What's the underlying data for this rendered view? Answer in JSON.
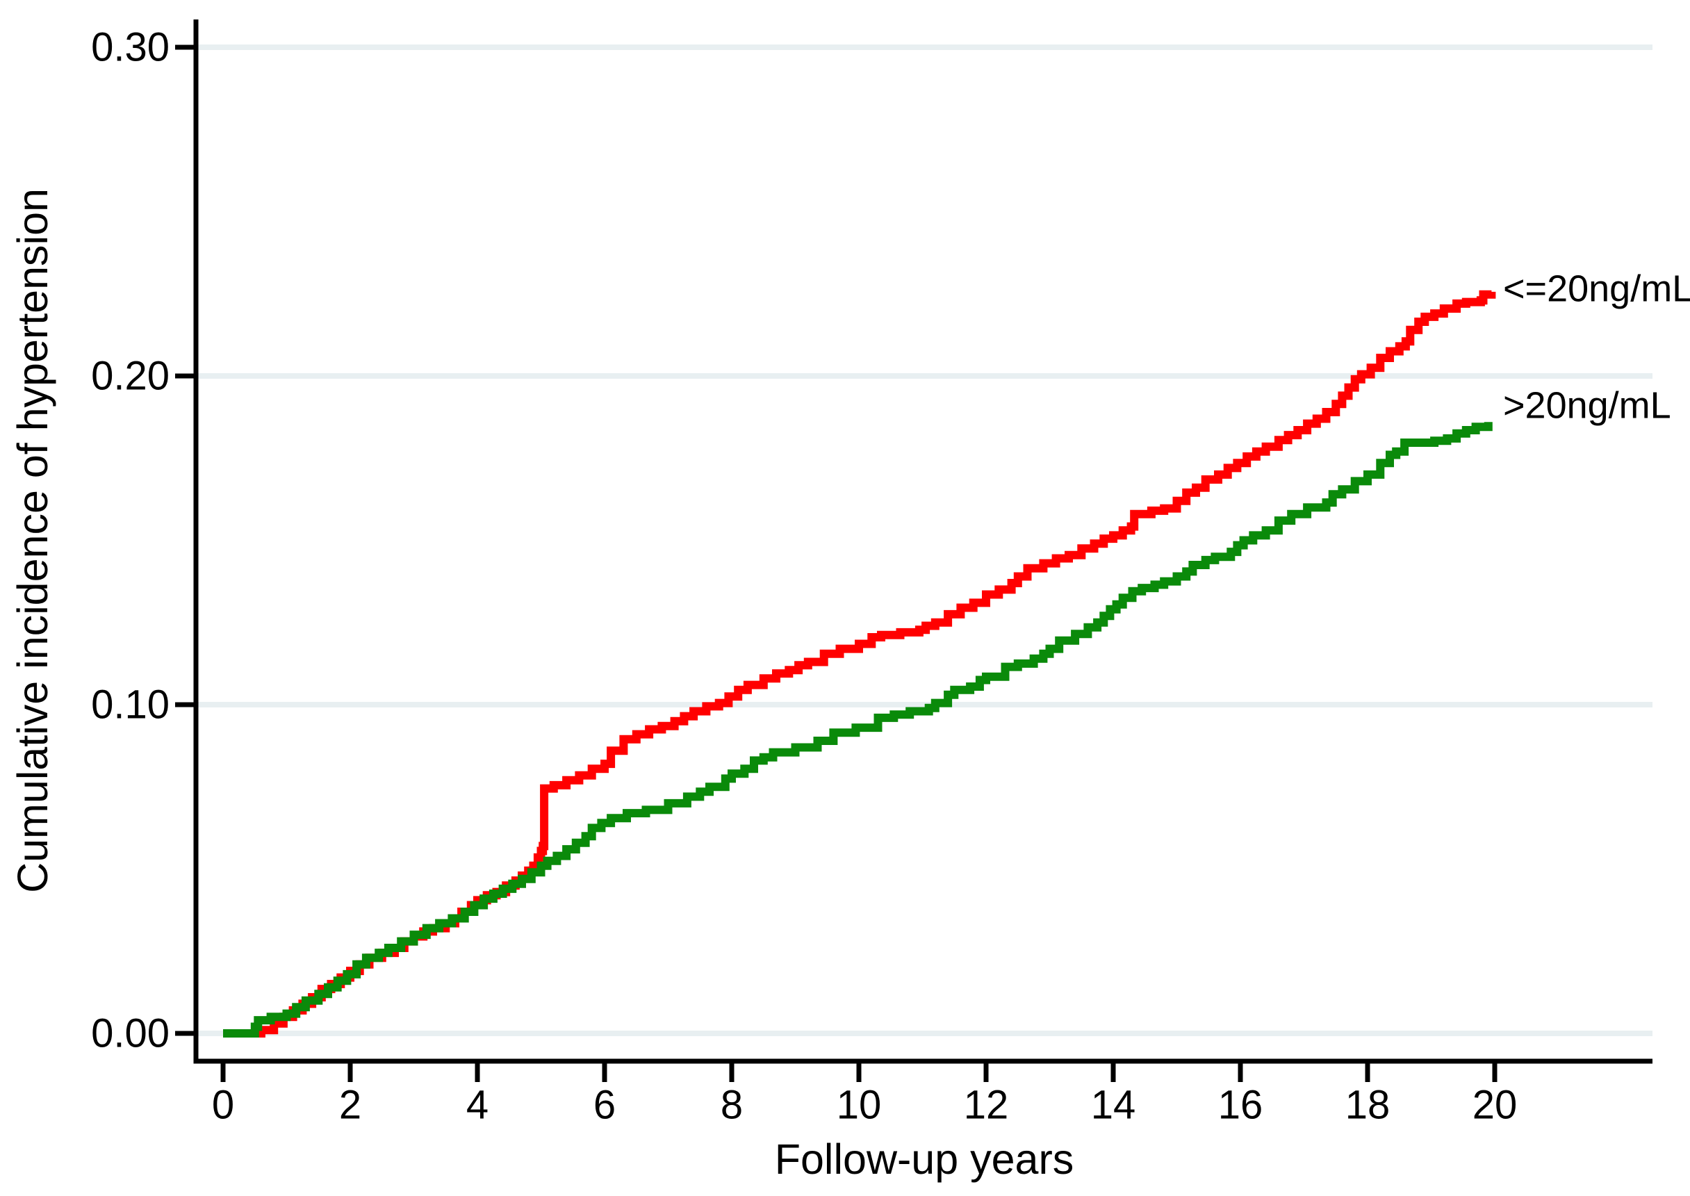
{
  "figure": {
    "xlabel": "Follow-up years",
    "ylabel": "Cumulative incidence of hypertension",
    "background_color": "#ffffff",
    "axis_color": "#000000",
    "text_color": "#000000"
  },
  "chart_data": {
    "type": "line",
    "subtype": "step-cumulative-incidence",
    "title": "",
    "xlabel": "Follow-up years",
    "ylabel": "Cumulative incidence of hypertension",
    "xlim": [
      0,
      22.5
    ],
    "ylim": [
      0,
      0.3
    ],
    "xticks": [
      "0",
      "2",
      "4",
      "6",
      "8",
      "10",
      "12",
      "14",
      "16",
      "18",
      "20"
    ],
    "xtick_values": [
      0,
      2,
      4,
      6,
      8,
      10,
      12,
      14,
      16,
      18,
      20
    ],
    "yticks": [
      "0.00",
      "0.10",
      "0.20",
      "0.30"
    ],
    "ytick_values": [
      0,
      0.1,
      0.2,
      0.3
    ],
    "grid": "horizontal",
    "gridline_color": "#e8eff1",
    "legend_position": "end-of-line-labels",
    "series": [
      {
        "name": "<=20ng/mL",
        "color": "#ff0000",
        "label_value": 0.2265,
        "points": [
          [
            0,
            0
          ],
          [
            0.45,
            0
          ],
          [
            0.6,
            0.001
          ],
          [
            0.8,
            0.003
          ],
          [
            0.95,
            0.005
          ],
          [
            1.1,
            0.007
          ],
          [
            1.25,
            0.009
          ],
          [
            1.4,
            0.011
          ],
          [
            1.55,
            0.0135
          ],
          [
            1.7,
            0.015
          ],
          [
            1.85,
            0.017
          ],
          [
            2.0,
            0.019
          ],
          [
            2.15,
            0.021
          ],
          [
            2.3,
            0.023
          ],
          [
            2.5,
            0.0245
          ],
          [
            2.7,
            0.026
          ],
          [
            2.85,
            0.028
          ],
          [
            3.0,
            0.0295
          ],
          [
            3.15,
            0.031
          ],
          [
            3.3,
            0.032
          ],
          [
            3.5,
            0.0335
          ],
          [
            3.65,
            0.035
          ],
          [
            3.75,
            0.037
          ],
          [
            3.9,
            0.039
          ],
          [
            4.0,
            0.0405
          ],
          [
            4.15,
            0.042
          ],
          [
            4.3,
            0.043
          ],
          [
            4.45,
            0.045
          ],
          [
            4.6,
            0.0465
          ],
          [
            4.7,
            0.048
          ],
          [
            4.8,
            0.0495
          ],
          [
            4.88,
            0.051
          ],
          [
            4.95,
            0.0535
          ],
          [
            5.0,
            0.0555
          ],
          [
            5.03,
            0.057
          ],
          [
            5.05,
            0.0745
          ],
          [
            5.2,
            0.0755
          ],
          [
            5.4,
            0.077
          ],
          [
            5.6,
            0.0785
          ],
          [
            5.8,
            0.0805
          ],
          [
            6.0,
            0.082
          ],
          [
            6.1,
            0.086
          ],
          [
            6.3,
            0.0895
          ],
          [
            6.5,
            0.091
          ],
          [
            6.7,
            0.0925
          ],
          [
            6.9,
            0.0935
          ],
          [
            7.1,
            0.095
          ],
          [
            7.25,
            0.0965
          ],
          [
            7.4,
            0.098
          ],
          [
            7.6,
            0.0995
          ],
          [
            7.8,
            0.1005
          ],
          [
            7.95,
            0.1025
          ],
          [
            8.1,
            0.1045
          ],
          [
            8.25,
            0.106
          ],
          [
            8.5,
            0.108
          ],
          [
            8.7,
            0.1095
          ],
          [
            8.9,
            0.1105
          ],
          [
            9.05,
            0.112
          ],
          [
            9.2,
            0.113
          ],
          [
            9.45,
            0.1155
          ],
          [
            9.7,
            0.117
          ],
          [
            10.0,
            0.1185
          ],
          [
            10.2,
            0.1205
          ],
          [
            10.35,
            0.1212
          ],
          [
            10.65,
            0.122
          ],
          [
            10.95,
            0.1228
          ],
          [
            11.05,
            0.124
          ],
          [
            11.2,
            0.125
          ],
          [
            11.4,
            0.1275
          ],
          [
            11.6,
            0.1295
          ],
          [
            11.8,
            0.131
          ],
          [
            12.0,
            0.1335
          ],
          [
            12.2,
            0.135
          ],
          [
            12.4,
            0.137
          ],
          [
            12.5,
            0.139
          ],
          [
            12.65,
            0.1415
          ],
          [
            12.9,
            0.143
          ],
          [
            13.1,
            0.1445
          ],
          [
            13.3,
            0.1455
          ],
          [
            13.5,
            0.1475
          ],
          [
            13.7,
            0.149
          ],
          [
            13.85,
            0.1505
          ],
          [
            14.0,
            0.1515
          ],
          [
            14.15,
            0.153
          ],
          [
            14.28,
            0.1542
          ],
          [
            14.33,
            0.158
          ],
          [
            14.6,
            0.159
          ],
          [
            14.8,
            0.1597
          ],
          [
            15.0,
            0.162
          ],
          [
            15.15,
            0.1645
          ],
          [
            15.3,
            0.166
          ],
          [
            15.45,
            0.1685
          ],
          [
            15.65,
            0.17
          ],
          [
            15.8,
            0.172
          ],
          [
            15.95,
            0.1735
          ],
          [
            16.1,
            0.1755
          ],
          [
            16.25,
            0.177
          ],
          [
            16.4,
            0.1785
          ],
          [
            16.6,
            0.1805
          ],
          [
            16.75,
            0.182
          ],
          [
            16.9,
            0.1835
          ],
          [
            17.05,
            0.1855
          ],
          [
            17.2,
            0.187
          ],
          [
            17.35,
            0.189
          ],
          [
            17.5,
            0.1915
          ],
          [
            17.6,
            0.194
          ],
          [
            17.7,
            0.1965
          ],
          [
            17.8,
            0.199
          ],
          [
            17.9,
            0.2005
          ],
          [
            18.05,
            0.2025
          ],
          [
            18.2,
            0.2055
          ],
          [
            18.35,
            0.2075
          ],
          [
            18.5,
            0.209
          ],
          [
            18.6,
            0.2105
          ],
          [
            18.67,
            0.214
          ],
          [
            18.8,
            0.2165
          ],
          [
            18.9,
            0.218
          ],
          [
            19.05,
            0.219
          ],
          [
            19.2,
            0.2205
          ],
          [
            19.4,
            0.222
          ],
          [
            19.55,
            0.2225
          ],
          [
            19.78,
            0.223
          ],
          [
            19.82,
            0.2248
          ],
          [
            19.95,
            0.2256
          ]
        ]
      },
      {
        "name": ">20ng/mL",
        "color": "#0a8a0a",
        "label_value": 0.191,
        "points": [
          [
            0,
            0
          ],
          [
            0.35,
            0
          ],
          [
            0.5,
            0.002
          ],
          [
            0.55,
            0.004
          ],
          [
            0.75,
            0.005
          ],
          [
            1.0,
            0.006
          ],
          [
            1.15,
            0.008
          ],
          [
            1.3,
            0.01
          ],
          [
            1.5,
            0.012
          ],
          [
            1.65,
            0.014
          ],
          [
            1.8,
            0.016
          ],
          [
            1.95,
            0.018
          ],
          [
            2.1,
            0.021
          ],
          [
            2.25,
            0.023
          ],
          [
            2.45,
            0.0245
          ],
          [
            2.6,
            0.026
          ],
          [
            2.8,
            0.028
          ],
          [
            3.0,
            0.03
          ],
          [
            3.2,
            0.032
          ],
          [
            3.4,
            0.0335
          ],
          [
            3.6,
            0.035
          ],
          [
            3.8,
            0.037
          ],
          [
            3.95,
            0.039
          ],
          [
            4.1,
            0.041
          ],
          [
            4.25,
            0.0425
          ],
          [
            4.4,
            0.044
          ],
          [
            4.55,
            0.0455
          ],
          [
            4.7,
            0.047
          ],
          [
            4.85,
            0.049
          ],
          [
            5.0,
            0.051
          ],
          [
            5.1,
            0.0525
          ],
          [
            5.25,
            0.054
          ],
          [
            5.4,
            0.056
          ],
          [
            5.55,
            0.058
          ],
          [
            5.7,
            0.06
          ],
          [
            5.8,
            0.0625
          ],
          [
            5.95,
            0.064
          ],
          [
            6.1,
            0.0655
          ],
          [
            6.35,
            0.067
          ],
          [
            6.65,
            0.068
          ],
          [
            7.0,
            0.07
          ],
          [
            7.3,
            0.072
          ],
          [
            7.5,
            0.0735
          ],
          [
            7.65,
            0.075
          ],
          [
            7.9,
            0.0775
          ],
          [
            8.0,
            0.079
          ],
          [
            8.2,
            0.0805
          ],
          [
            8.35,
            0.083
          ],
          [
            8.5,
            0.084
          ],
          [
            8.65,
            0.0855
          ],
          [
            9.0,
            0.087
          ],
          [
            9.35,
            0.089
          ],
          [
            9.6,
            0.0915
          ],
          [
            9.95,
            0.093
          ],
          [
            10.3,
            0.096
          ],
          [
            10.55,
            0.097
          ],
          [
            10.8,
            0.098
          ],
          [
            11.1,
            0.099
          ],
          [
            11.2,
            0.1005
          ],
          [
            11.4,
            0.103
          ],
          [
            11.5,
            0.1045
          ],
          [
            11.75,
            0.1055
          ],
          [
            11.9,
            0.1075
          ],
          [
            12.0,
            0.1085
          ],
          [
            12.3,
            0.1115
          ],
          [
            12.5,
            0.1125
          ],
          [
            12.75,
            0.114
          ],
          [
            12.9,
            0.1155
          ],
          [
            13.0,
            0.117
          ],
          [
            13.15,
            0.1195
          ],
          [
            13.4,
            0.1215
          ],
          [
            13.6,
            0.1235
          ],
          [
            13.75,
            0.125
          ],
          [
            13.85,
            0.127
          ],
          [
            13.95,
            0.129
          ],
          [
            14.05,
            0.1305
          ],
          [
            14.15,
            0.1325
          ],
          [
            14.3,
            0.1345
          ],
          [
            14.45,
            0.1355
          ],
          [
            14.65,
            0.1365
          ],
          [
            14.8,
            0.1375
          ],
          [
            15.0,
            0.139
          ],
          [
            15.15,
            0.1405
          ],
          [
            15.25,
            0.1425
          ],
          [
            15.45,
            0.144
          ],
          [
            15.6,
            0.145
          ],
          [
            15.85,
            0.1465
          ],
          [
            15.95,
            0.1485
          ],
          [
            16.05,
            0.15
          ],
          [
            16.2,
            0.1515
          ],
          [
            16.4,
            0.153
          ],
          [
            16.6,
            0.156
          ],
          [
            16.8,
            0.158
          ],
          [
            17.05,
            0.16
          ],
          [
            17.35,
            0.1615
          ],
          [
            17.45,
            0.164
          ],
          [
            17.6,
            0.1655
          ],
          [
            17.8,
            0.168
          ],
          [
            18.0,
            0.17
          ],
          [
            18.2,
            0.1735
          ],
          [
            18.35,
            0.176
          ],
          [
            18.45,
            0.177
          ],
          [
            18.58,
            0.1797
          ],
          [
            19.05,
            0.1803
          ],
          [
            19.25,
            0.181
          ],
          [
            19.4,
            0.1825
          ],
          [
            19.55,
            0.1835
          ],
          [
            19.7,
            0.1845
          ],
          [
            19.9,
            0.186
          ]
        ]
      }
    ]
  }
}
